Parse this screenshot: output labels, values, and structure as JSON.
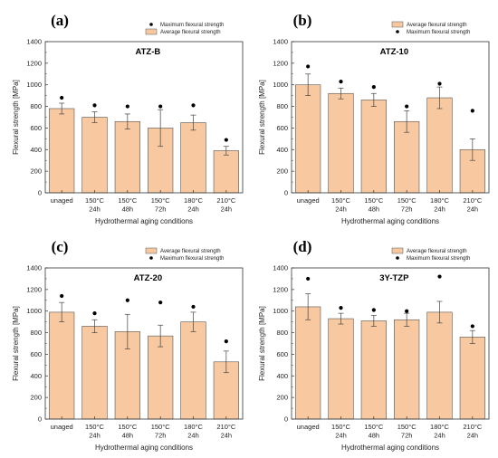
{
  "colors": {
    "bar_fill": "#f8c9a0",
    "bar_stroke": "#555555",
    "marker": "#000000",
    "axis": "#333333"
  },
  "chart_data": [
    {
      "type": "bar",
      "panel": "(a)",
      "title": "ATZ-B",
      "xlabel": "Hydrothermal aging conditions",
      "ylabel": "Flexural strength [MPa]",
      "ylim": [
        0,
        1400
      ],
      "yticks": [
        "0",
        "200",
        "400",
        "600",
        "800",
        "1000",
        "1200",
        "1400"
      ],
      "categories": [
        [
          "unaged"
        ],
        [
          "150°C",
          "24h"
        ],
        [
          "150°C",
          "48h"
        ],
        [
          "150°C",
          "72h"
        ],
        [
          "180°C",
          "24h"
        ],
        [
          "210°C",
          "24h"
        ]
      ],
      "legend_order": [
        "max",
        "avg"
      ],
      "legend_position": "top-right",
      "series": [
        {
          "name": "Maximum flexural strength",
          "kind": "scatter",
          "values": [
            880,
            810,
            800,
            800,
            810,
            490
          ]
        },
        {
          "name": "Average flexural strength",
          "kind": "bar",
          "values": [
            780,
            700,
            660,
            600,
            650,
            390
          ],
          "error": [
            50,
            50,
            70,
            170,
            70,
            40
          ]
        }
      ]
    },
    {
      "type": "bar",
      "panel": "(b)",
      "title": "ATZ-10",
      "xlabel": "Hydrothermal aging conditions",
      "ylabel": "Flexural strength [MPa]",
      "ylim": [
        0,
        1400
      ],
      "yticks": [
        "0",
        "200",
        "400",
        "600",
        "800",
        "1000",
        "1200",
        "1400"
      ],
      "categories": [
        [
          "unaged"
        ],
        [
          "150°C",
          "24h"
        ],
        [
          "150°C",
          "48h"
        ],
        [
          "150°C",
          "72h"
        ],
        [
          "180°C",
          "24h"
        ],
        [
          "210°C",
          "24h"
        ]
      ],
      "legend_order": [
        "avg",
        "max"
      ],
      "legend_position": "top-right",
      "series": [
        {
          "name": "Maximum flexural strength",
          "kind": "scatter",
          "values": [
            1170,
            1030,
            980,
            800,
            1010,
            760
          ]
        },
        {
          "name": "Average flexural strength",
          "kind": "bar",
          "values": [
            1000,
            920,
            860,
            660,
            880,
            400
          ],
          "error": [
            100,
            50,
            60,
            100,
            100,
            100
          ]
        }
      ]
    },
    {
      "type": "bar",
      "panel": "(c)",
      "title": "ATZ-20",
      "xlabel": "Hydrothermal aging conditions",
      "ylabel": "Flexural strength [MPa]",
      "ylim": [
        0,
        1400
      ],
      "yticks": [
        "0",
        "200",
        "400",
        "600",
        "800",
        "1000",
        "1200",
        "1400"
      ],
      "categories": [
        [
          "unaged"
        ],
        [
          "150°C",
          "24h"
        ],
        [
          "150°C",
          "48h"
        ],
        [
          "150°C",
          "72h"
        ],
        [
          "180°C",
          "24h"
        ],
        [
          "210°C",
          "24h"
        ]
      ],
      "legend_order": [
        "avg",
        "max"
      ],
      "legend_position": "top-right",
      "series": [
        {
          "name": "Maximum flexural strength",
          "kind": "scatter",
          "values": [
            1140,
            980,
            1100,
            1080,
            1040,
            720
          ]
        },
        {
          "name": "Average flexural strength",
          "kind": "bar",
          "values": [
            990,
            860,
            810,
            770,
            900,
            530
          ],
          "error": [
            90,
            60,
            160,
            100,
            90,
            100
          ]
        }
      ]
    },
    {
      "type": "bar",
      "panel": "(d)",
      "title": "3Y-TZP",
      "xlabel": "Hydrothermal aging conditions",
      "ylabel": "Flexural strength [MPa]",
      "ylim": [
        0,
        1400
      ],
      "yticks": [
        "0",
        "200",
        "400",
        "600",
        "800",
        "1000",
        "1200",
        "1400"
      ],
      "categories": [
        [
          "unaged"
        ],
        [
          "150°C",
          "24h"
        ],
        [
          "150°C",
          "48h"
        ],
        [
          "150°C",
          "72h"
        ],
        [
          "180°C",
          "24h"
        ],
        [
          "210°C",
          "24h"
        ]
      ],
      "legend_order": [
        "avg",
        "max"
      ],
      "legend_position": "top-right",
      "series": [
        {
          "name": "Maximum flexural strength",
          "kind": "scatter",
          "values": [
            1300,
            1030,
            1010,
            1000,
            1320,
            860
          ]
        },
        {
          "name": "Average flexural strength",
          "kind": "bar",
          "values": [
            1040,
            930,
            910,
            920,
            990,
            760
          ],
          "error": [
            120,
            50,
            50,
            60,
            100,
            60
          ]
        }
      ]
    }
  ]
}
